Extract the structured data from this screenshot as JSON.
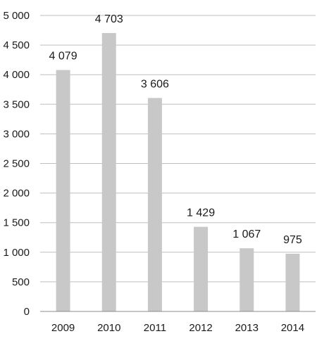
{
  "chart_data": {
    "type": "bar",
    "categories": [
      "2009",
      "2010",
      "2011",
      "2012",
      "2013",
      "2014"
    ],
    "values": [
      4079,
      4703,
      3606,
      1429,
      1067,
      975
    ],
    "value_labels": [
      "4 079",
      "4 703",
      "3 606",
      "1 429",
      "1 067",
      "975"
    ],
    "title": "",
    "xlabel": "",
    "ylabel": "",
    "ylim": [
      0,
      5000
    ],
    "yticks": [
      0,
      500,
      1000,
      1500,
      2000,
      2500,
      3000,
      3500,
      4000,
      4500,
      5000
    ],
    "ytick_labels": [
      "0",
      "500",
      "1 000",
      "1 500",
      "2 000",
      "2 500",
      "3 000",
      "3 500",
      "4 000",
      "4 500",
      "5 000"
    ],
    "grid": true,
    "legend": "none",
    "colors": {
      "bar": "#c8c8c8",
      "grid": "#bfbfbf",
      "axis": "#8c8c8c",
      "text": "#1a1a1a"
    }
  }
}
